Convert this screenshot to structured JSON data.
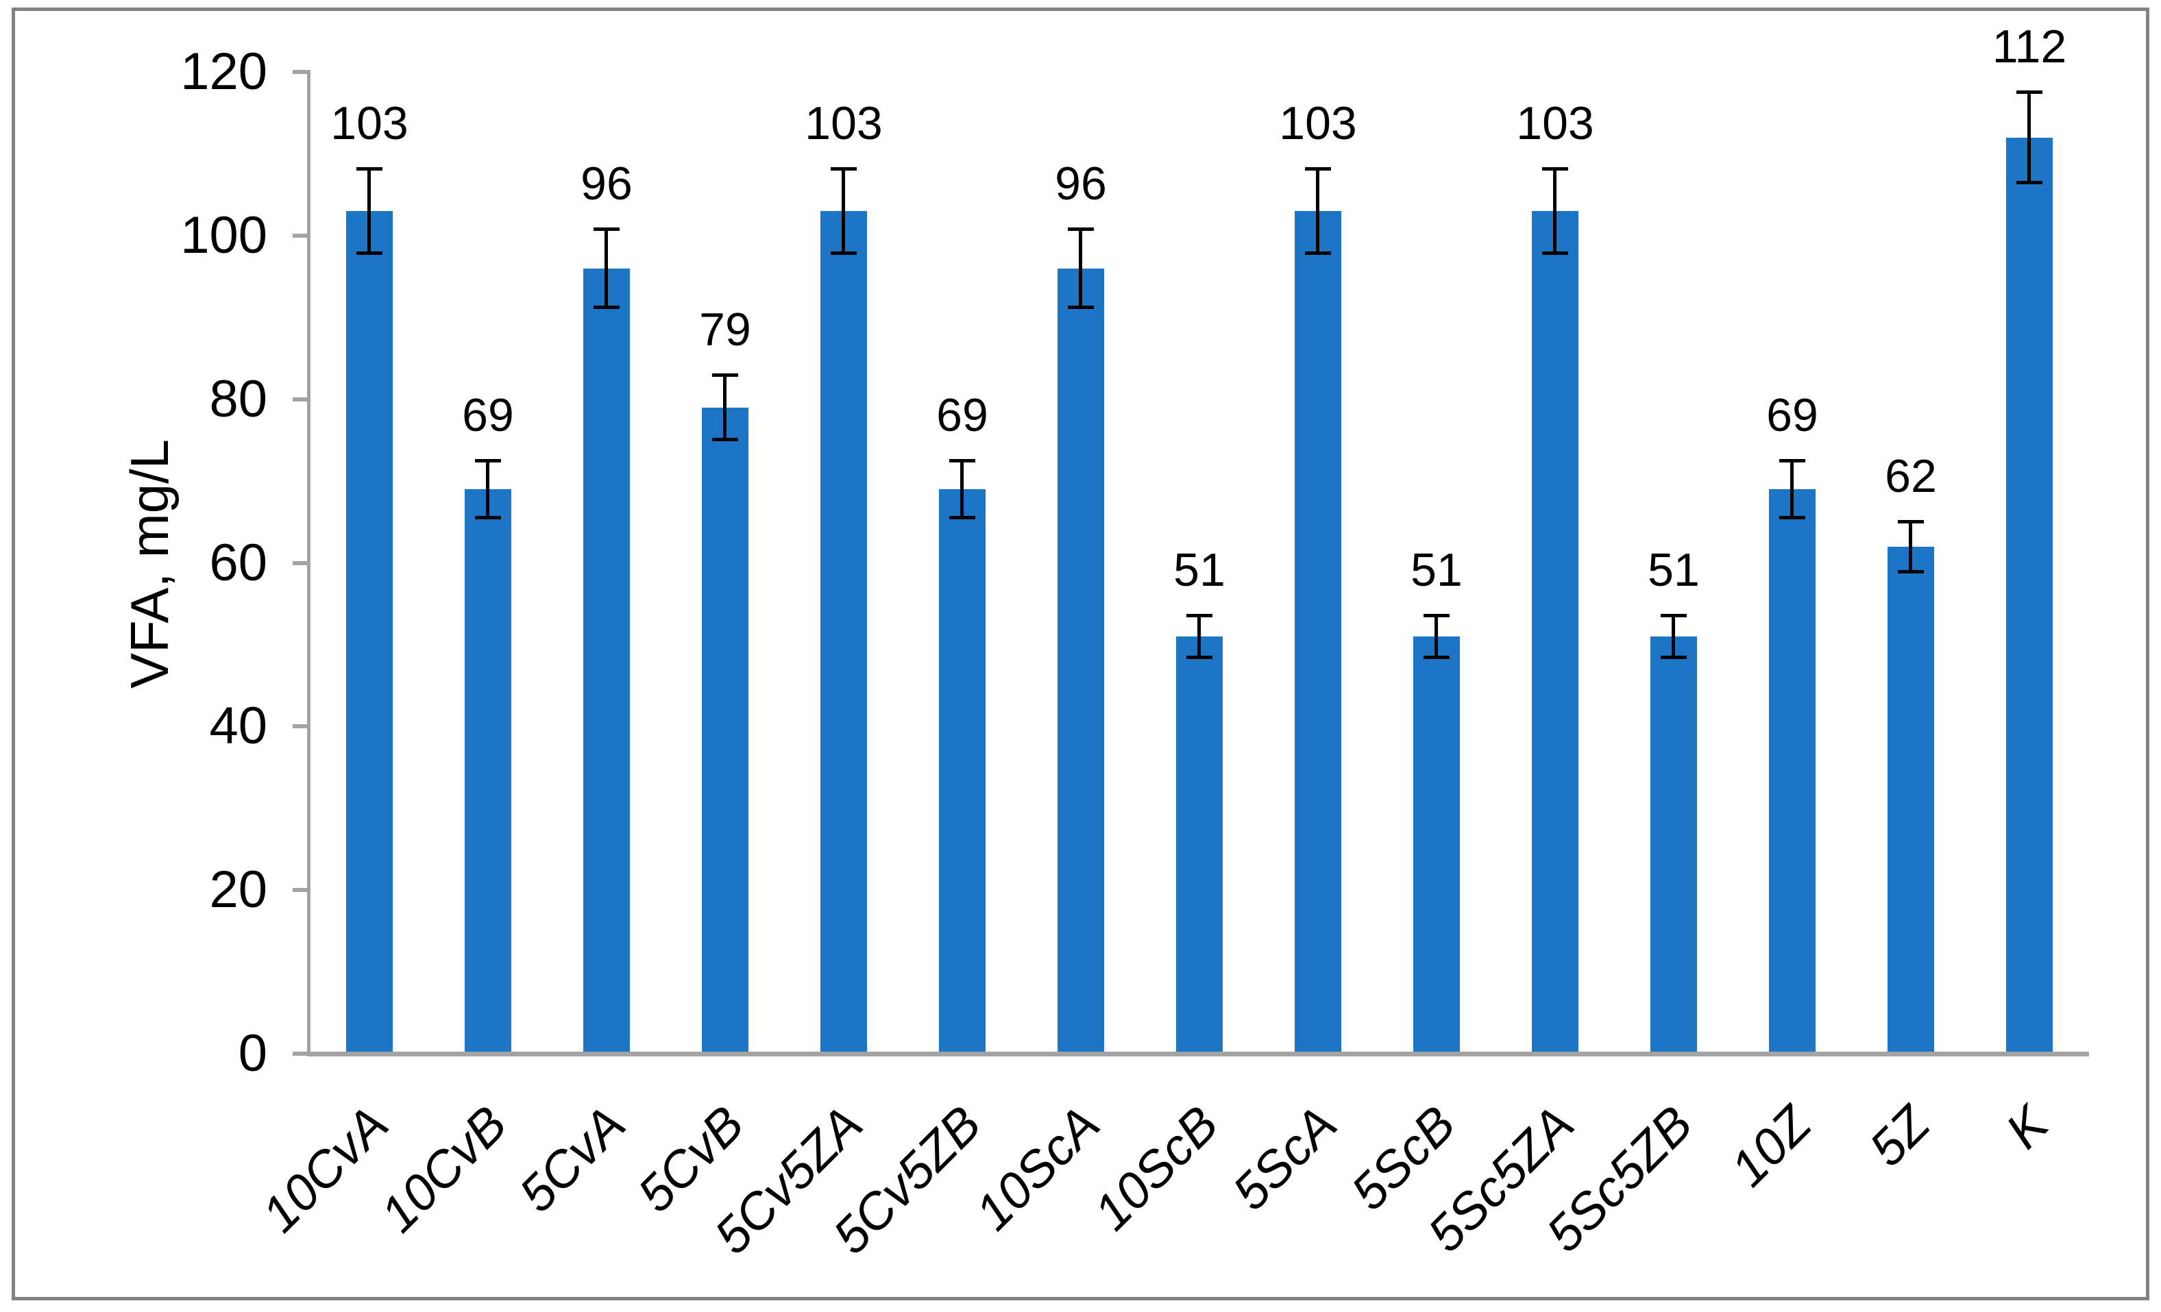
{
  "chart_data": {
    "type": "bar",
    "title": "",
    "xlabel": "",
    "ylabel": "VFA, mg/L",
    "ylim": [
      0,
      120
    ],
    "yticks": [
      0,
      20,
      40,
      60,
      80,
      100,
      120
    ],
    "ytick_labels": [
      "0",
      "20",
      "40",
      "60",
      "80",
      "100",
      "120"
    ],
    "grid": false,
    "legend": false,
    "categories": [
      "10CvA",
      "10CvB",
      "5CvA",
      "5CvB",
      "5Cv5ZA",
      "5Cv5ZB",
      "10ScA",
      "10ScB",
      "5ScA",
      "5ScB",
      "5Sc5ZA",
      "5Sc5ZB",
      "10Z",
      "5Z",
      "K"
    ],
    "values": [
      103,
      69,
      96,
      79,
      103,
      69,
      96,
      51,
      103,
      51,
      103,
      51,
      69,
      62,
      112
    ],
    "bar_labels": [
      "103",
      "69",
      "96",
      "79",
      "103",
      "69",
      "96",
      "51",
      "103",
      "51",
      "103",
      "51",
      "69",
      "62",
      "112"
    ],
    "error_bars": [
      5.2,
      3.5,
      4.8,
      4.0,
      5.2,
      3.5,
      4.8,
      2.6,
      5.2,
      2.6,
      5.2,
      2.6,
      3.5,
      3.1,
      5.6
    ],
    "colors": {
      "bar": "#1C75C5",
      "error": "#000000",
      "axis": "#A3A3A3",
      "frame": "#828282",
      "text": "#000000",
      "background": "#FFFFFF"
    }
  }
}
